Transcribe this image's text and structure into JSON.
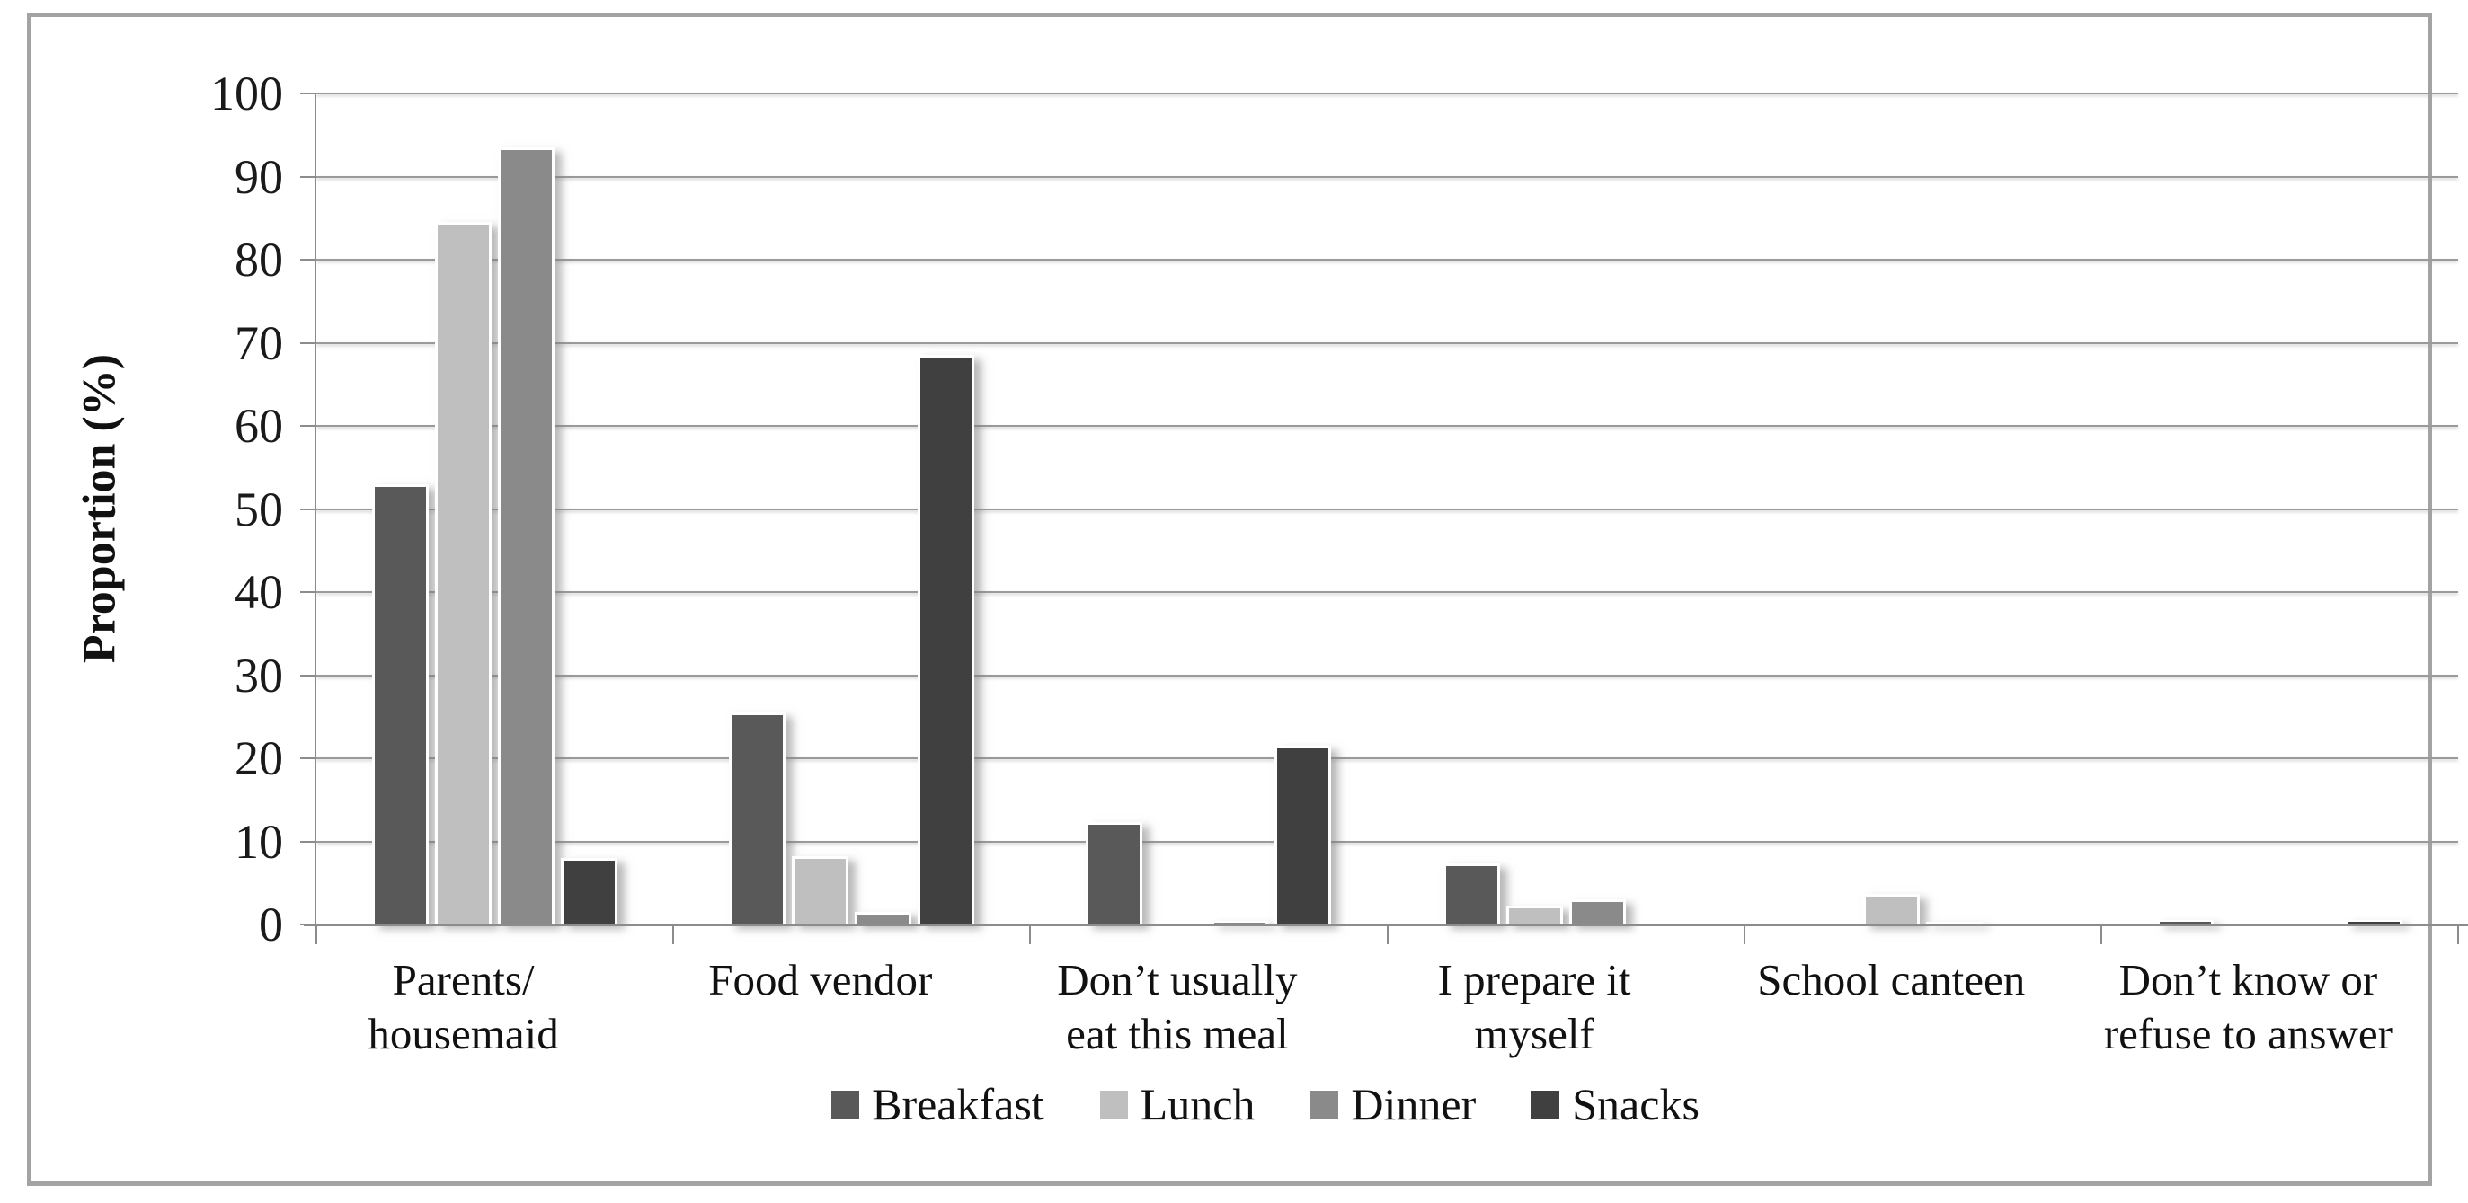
{
  "chart_data": {
    "type": "bar",
    "title": "",
    "ylabel": "Proportion (%)",
    "xlabel": "",
    "ylim": [
      0,
      100
    ],
    "yticks": [
      0,
      10,
      20,
      30,
      40,
      50,
      60,
      70,
      80,
      90,
      100
    ],
    "grid": true,
    "legend_position": "bottom",
    "categories": [
      "Parents/\nhousemaid",
      "Food vendor",
      "Don’t usually\neat this meal",
      "I prepare it\nmyself",
      "School canteen",
      "Don’t know or\nrefuse to answer"
    ],
    "series": [
      {
        "name": "Breakfast",
        "color": "#595959",
        "values": [
          53.0,
          25.5,
          12.3,
          7.4,
          0,
          0.5
        ]
      },
      {
        "name": "Lunch",
        "color": "#bfbfbf",
        "values": [
          84.5,
          8.2,
          0,
          2.3,
          3.7,
          0
        ]
      },
      {
        "name": "Dinner",
        "color": "#8a8a8a",
        "values": [
          93.5,
          1.5,
          0.4,
          3.0,
          0.3,
          0
        ]
      },
      {
        "name": "Snacks",
        "color": "#404040",
        "values": [
          8.0,
          68.5,
          21.5,
          0,
          0,
          0.5
        ]
      }
    ]
  },
  "frame": {
    "border_color": "#a3a3a3"
  }
}
